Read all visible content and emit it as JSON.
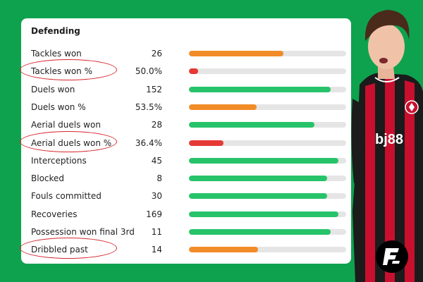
{
  "panel": {
    "title": "Defending"
  },
  "stats": [
    {
      "label": "Tackles won",
      "value": "26",
      "fill": 0.6,
      "color": "#f28c28",
      "circled": false
    },
    {
      "label": "Tackles won %",
      "value": "50.0%",
      "fill": 0.06,
      "color": "#e53935",
      "circled": true
    },
    {
      "label": "Duels won",
      "value": "152",
      "fill": 0.9,
      "color": "#27c36a",
      "circled": false
    },
    {
      "label": "Duels won %",
      "value": "53.5%",
      "fill": 0.43,
      "color": "#f28c28",
      "circled": false
    },
    {
      "label": "Aerial duels won",
      "value": "28",
      "fill": 0.8,
      "color": "#27c36a",
      "circled": false
    },
    {
      "label": "Aerial duels won %",
      "value": "36.4%",
      "fill": 0.22,
      "color": "#e53935",
      "circled": true
    },
    {
      "label": "Interceptions",
      "value": "45",
      "fill": 0.95,
      "color": "#27c36a",
      "circled": false
    },
    {
      "label": "Blocked",
      "value": "8",
      "fill": 0.88,
      "color": "#27c36a",
      "circled": false
    },
    {
      "label": "Fouls committed",
      "value": "30",
      "fill": 0.88,
      "color": "#27c36a",
      "circled": false
    },
    {
      "label": "Recoveries",
      "value": "169",
      "fill": 0.95,
      "color": "#27c36a",
      "circled": false
    },
    {
      "label": "Possession won final 3rd",
      "value": "11",
      "fill": 0.9,
      "color": "#27c36a",
      "circled": false
    },
    {
      "label": "Dribbled past",
      "value": "14",
      "fill": 0.44,
      "color": "#f28c28",
      "circled": true
    }
  ],
  "colors": {
    "background": "#0ea24e",
    "card": "#ffffff",
    "annotation": "#d7262d"
  },
  "sponsor": "bj88",
  "icons": [
    "player-photo",
    "brand-logo-icon",
    "club-crest-icon"
  ]
}
